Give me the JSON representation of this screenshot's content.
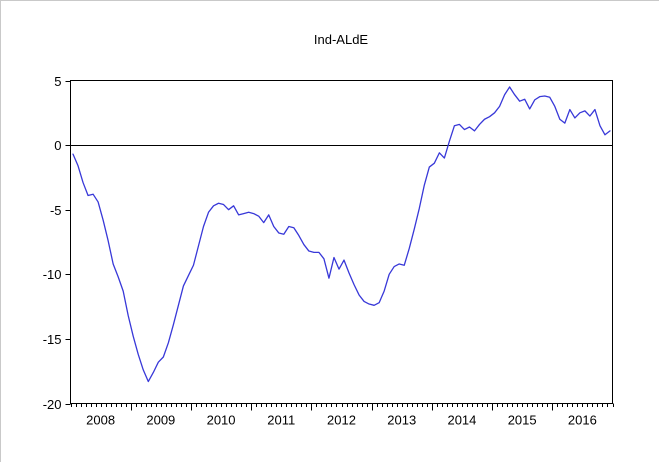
{
  "page": {
    "background": "#ffffff"
  },
  "chart_data": {
    "type": "line",
    "title": "Ind-ALdE",
    "x_start": "2008M01",
    "x_end": "2016M12",
    "x_frequency": "monthly",
    "xtick_year_labels": [
      "2008",
      "2009",
      "2010",
      "2011",
      "2012",
      "2013",
      "2014",
      "2015",
      "2016"
    ],
    "months_per_year": 12,
    "ylim": [
      -20,
      5
    ],
    "yticks": [
      5,
      0,
      -5,
      -10,
      -15,
      -20
    ],
    "zero_line": true,
    "grid": false,
    "legend": "none",
    "frame_color": "#000000",
    "text_color": "#000000",
    "series": [
      {
        "name": "Ind-ALdE",
        "color": "#3838d8",
        "values": [
          -0.7,
          -1.6,
          -2.9,
          -3.9,
          -3.8,
          -4.4,
          -5.8,
          -7.4,
          -9.2,
          -10.2,
          -11.3,
          -13.2,
          -14.8,
          -16.2,
          -17.4,
          -18.3,
          -17.6,
          -16.8,
          -16.4,
          -15.3,
          -13.9,
          -12.4,
          -10.9,
          -10.1,
          -9.3,
          -7.8,
          -6.3,
          -5.2,
          -4.7,
          -4.5,
          -4.6,
          -5.0,
          -4.7,
          -5.4,
          -5.3,
          -5.2,
          -5.3,
          -5.5,
          -6.0,
          -5.4,
          -6.3,
          -6.8,
          -6.9,
          -6.3,
          -6.4,
          -7.0,
          -7.7,
          -8.2,
          -8.3,
          -8.3,
          -8.8,
          -10.3,
          -8.7,
          -9.6,
          -8.9,
          -9.9,
          -10.8,
          -11.6,
          -12.1,
          -12.3,
          -12.4,
          -12.2,
          -11.3,
          -10.0,
          -9.4,
          -9.2,
          -9.3,
          -8.0,
          -6.5,
          -4.9,
          -3.1,
          -1.7,
          -1.4,
          -0.6,
          -1.0,
          0.3,
          1.5,
          1.6,
          1.2,
          1.4,
          1.1,
          1.6,
          2.0,
          2.2,
          2.5,
          3.0,
          3.9,
          4.5,
          3.9,
          3.4,
          3.55,
          2.8,
          3.5,
          3.75,
          3.8,
          3.7,
          3.0,
          2.0,
          1.7,
          2.75,
          2.1,
          2.5,
          2.65,
          2.25,
          2.75,
          1.5,
          0.8,
          1.1
        ]
      }
    ]
  }
}
